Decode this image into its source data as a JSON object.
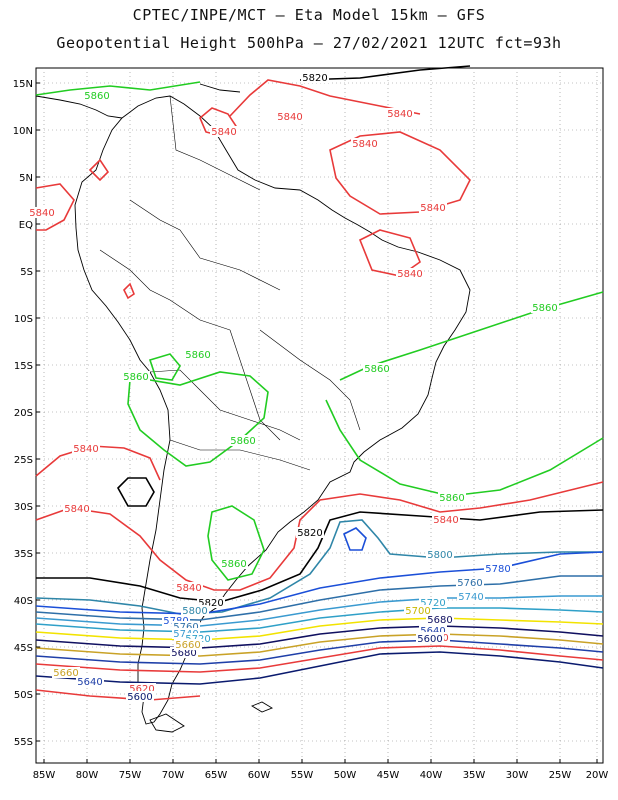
{
  "header": {
    "line1": "CPTEC/INPE/MCT –  Eta Model 15km – GFS",
    "line2": "Geopotential Height 500hPa – 27/02/2021 12UTC fct=93h"
  },
  "axes": {
    "lat_labels": [
      "15N",
      "10N",
      "5N",
      "EQ",
      "5S",
      "10S",
      "15S",
      "20S",
      "25S",
      "30S",
      "35S",
      "40S",
      "45S",
      "50S",
      "55S"
    ],
    "lon_labels": [
      "85W",
      "80W",
      "75W",
      "70W",
      "65W",
      "60W",
      "55W",
      "50W",
      "45W",
      "40W",
      "35W",
      "30W",
      "25W",
      "20W"
    ]
  },
  "colors": {
    "c5600": "#0a1a6e",
    "c5620": "#1f2d8f",
    "c5640": "#1f3fa8",
    "c5660": "#c9a227",
    "c5680": "#101060",
    "c5700": "#f2e300",
    "c5720": "#2fa0c8",
    "c5740": "#3a9ad0",
    "c5760": "#2e6fa8",
    "c5780": "#1b4fd8",
    "c5800": "#2f86a8",
    "c5820": "#000000",
    "c5840": "#e83a3a",
    "c5860": "#22cc22"
  },
  "contour_labels": [
    {
      "text": "5820",
      "color": "#000000"
    },
    {
      "text": "5840",
      "color": "#e83a3a"
    },
    {
      "text": "5860",
      "color": "#22cc22"
    },
    {
      "text": "5840",
      "color": "#e83a3a"
    },
    {
      "text": "5840",
      "color": "#e83a3a"
    },
    {
      "text": "5840",
      "color": "#e83a3a"
    },
    {
      "text": "5840",
      "color": "#e83a3a"
    },
    {
      "text": "5840",
      "color": "#e83a3a"
    },
    {
      "text": "5860",
      "color": "#22cc22"
    },
    {
      "text": "5860",
      "color": "#22cc22"
    },
    {
      "text": "5860",
      "color": "#22cc22"
    },
    {
      "text": "5860",
      "color": "#22cc22"
    },
    {
      "text": "5860",
      "color": "#22cc22"
    },
    {
      "text": "5860",
      "color": "#22cc22"
    },
    {
      "text": "5840",
      "color": "#e83a3a"
    },
    {
      "text": "5860",
      "color": "#22cc22"
    },
    {
      "text": "5840",
      "color": "#e83a3a"
    },
    {
      "text": "5840",
      "color": "#e83a3a"
    },
    {
      "text": "5820",
      "color": "#000000"
    },
    {
      "text": "5800",
      "color": "#2f86a8"
    },
    {
      "text": "5780",
      "color": "#1b4fd8"
    },
    {
      "text": "5760",
      "color": "#2e6fa8"
    },
    {
      "text": "5740",
      "color": "#3a9ad0"
    },
    {
      "text": "5720",
      "color": "#2fa0c8"
    },
    {
      "text": "5700",
      "color": "#c9b800"
    },
    {
      "text": "5680",
      "color": "#101060"
    },
    {
      "text": "5660",
      "color": "#c9a227"
    },
    {
      "text": "5640",
      "color": "#1f3fa8"
    },
    {
      "text": "5620",
      "color": "#e83a3a"
    },
    {
      "text": "5600",
      "color": "#0a1a6e"
    },
    {
      "text": "5840",
      "color": "#e83a3a"
    },
    {
      "text": "5820",
      "color": "#000000"
    },
    {
      "text": "5800",
      "color": "#2f86a8"
    },
    {
      "text": "5780",
      "color": "#1b4fd8"
    },
    {
      "text": "5760",
      "color": "#2e6fa8"
    },
    {
      "text": "5740",
      "color": "#3a9ad0"
    },
    {
      "text": "5720",
      "color": "#2fa0c8"
    },
    {
      "text": "5680",
      "color": "#101060"
    },
    {
      "text": "5660",
      "color": "#c9a227"
    },
    {
      "text": "5640",
      "color": "#1f3fa8"
    },
    {
      "text": "5620",
      "color": "#e83a3a"
    },
    {
      "text": "5600",
      "color": "#0a1a6e"
    },
    {
      "text": "5840",
      "color": "#e83a3a"
    }
  ]
}
